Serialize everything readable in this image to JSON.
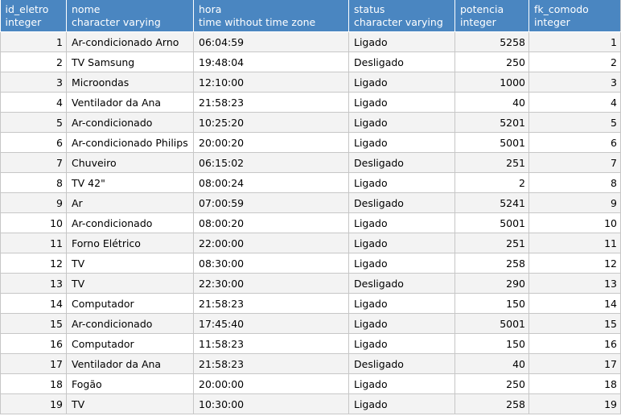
{
  "columns": [
    {
      "name": "id_eletro",
      "type": "integer",
      "align": "right"
    },
    {
      "name": "nome",
      "type": "character varying",
      "align": "left"
    },
    {
      "name": "hora",
      "type": "time without time zone",
      "align": "left"
    },
    {
      "name": "status",
      "type": "character varying",
      "align": "left"
    },
    {
      "name": "potencia",
      "type": "integer",
      "align": "right"
    },
    {
      "name": "fk_comodo",
      "type": "integer",
      "align": "right"
    }
  ],
  "rows": [
    [
      "1",
      "Ar-condicionado Arno",
      "06:04:59",
      "Ligado",
      "5258",
      "1"
    ],
    [
      "2",
      "TV Samsung",
      "19:48:04",
      "Desligado",
      "250",
      "2"
    ],
    [
      "3",
      "Microondas",
      "12:10:00",
      "Ligado",
      "1000",
      "3"
    ],
    [
      "4",
      "Ventilador da Ana",
      "21:58:23",
      "Ligado",
      "40",
      "4"
    ],
    [
      "5",
      "Ar-condicionado",
      "10:25:20",
      "Ligado",
      "5201",
      "5"
    ],
    [
      "6",
      "Ar-condicionado Philips",
      "20:00:20",
      "Ligado",
      "5001",
      "6"
    ],
    [
      "7",
      "Chuveiro",
      "06:15:02",
      "Desligado",
      "251",
      "7"
    ],
    [
      "8",
      "TV 42\"",
      "08:00:24",
      "Ligado",
      "2",
      "8"
    ],
    [
      "9",
      "Ar",
      "07:00:59",
      "Desligado",
      "5241",
      "9"
    ],
    [
      "10",
      "Ar-condicionado",
      "08:00:20",
      "Ligado",
      "5001",
      "10"
    ],
    [
      "11",
      "Forno Elétrico",
      "22:00:00",
      "Ligado",
      "251",
      "11"
    ],
    [
      "12",
      "TV",
      "08:30:00",
      "Ligado",
      "258",
      "12"
    ],
    [
      "13",
      "TV",
      "22:30:00",
      "Desligado",
      "290",
      "13"
    ],
    [
      "14",
      "Computador",
      "21:58:23",
      "Ligado",
      "150",
      "14"
    ],
    [
      "15",
      "Ar-condicionado",
      "17:45:40",
      "Ligado",
      "5001",
      "15"
    ],
    [
      "16",
      "Computador",
      "11:58:23",
      "Ligado",
      "150",
      "16"
    ],
    [
      "17",
      "Ventilador da Ana",
      "21:58:23",
      "Desligado",
      "40",
      "17"
    ],
    [
      "18",
      "Fogão",
      "20:00:00",
      "Ligado",
      "250",
      "18"
    ],
    [
      "19",
      "TV",
      "10:30:00",
      "Ligado",
      "258",
      "19"
    ]
  ],
  "colors": {
    "header_bg": "#4a86c1",
    "header_text": "#ffffff",
    "row_odd_bg": "#f3f3f3",
    "row_even_bg": "#ffffff",
    "grid_border": "#c7c7c7"
  }
}
